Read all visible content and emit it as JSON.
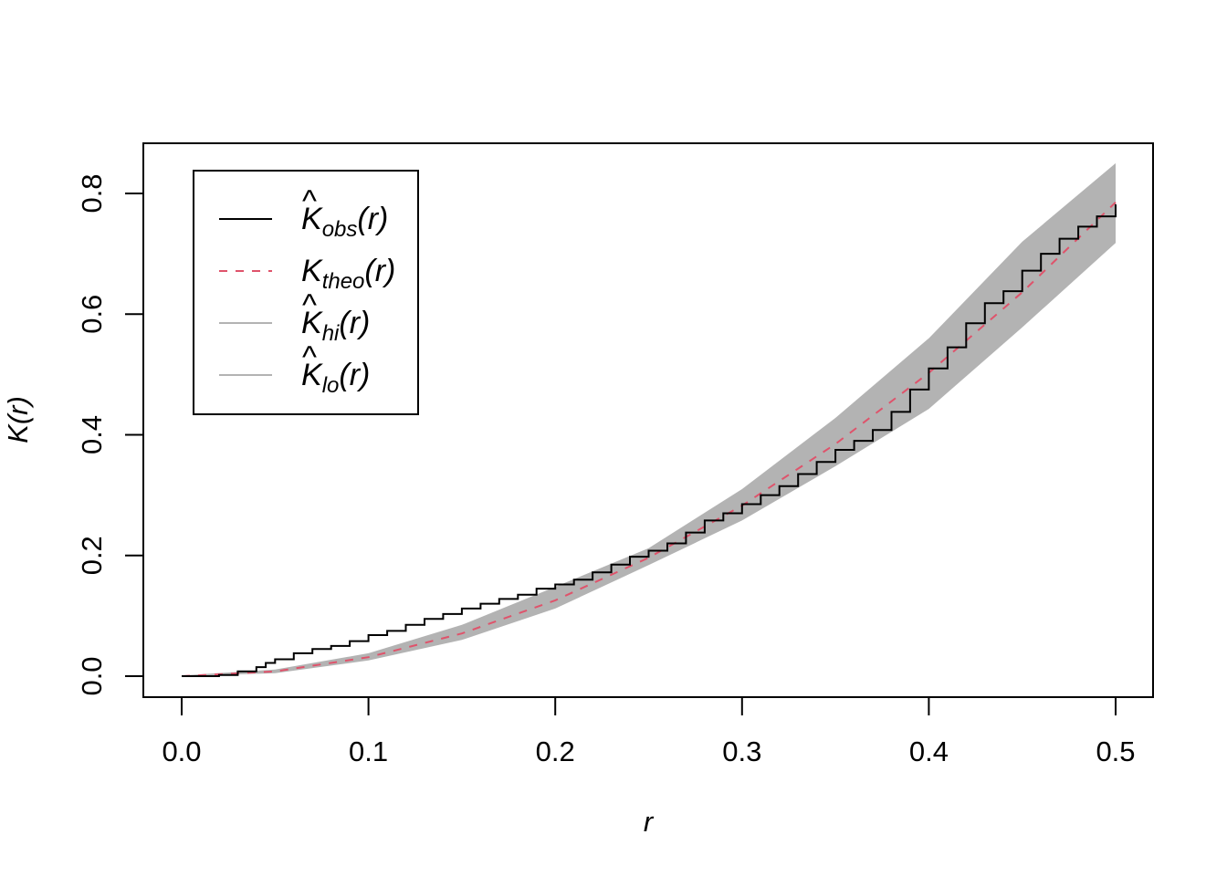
{
  "chart_data": {
    "type": "line",
    "xlabel": "r",
    "ylabel": "K(r)",
    "xlim": [
      0.0,
      0.5
    ],
    "ylim": [
      0.0,
      0.8
    ],
    "x_ticks": [
      "0.0",
      "0.1",
      "0.2",
      "0.3",
      "0.4",
      "0.5"
    ],
    "y_ticks": [
      "0.0",
      "0.2",
      "0.4",
      "0.6",
      "0.8"
    ],
    "grid": false,
    "legend_position": "top-left",
    "colors": {
      "obs": "#000000",
      "theo": "#DF536B",
      "envelope": "#B3B3B3"
    },
    "legend": [
      {
        "base": "K",
        "hat": "^",
        "sub": "obs",
        "arg": "(r)",
        "style": "solid",
        "color": "#000000"
      },
      {
        "base": "K",
        "hat": "",
        "sub": "theo",
        "arg": "(r)",
        "style": "dashed",
        "color": "#DF536B"
      },
      {
        "base": "K",
        "hat": "^",
        "sub": "hi",
        "arg": "(r)",
        "style": "solid",
        "color": "#B3B3B3"
      },
      {
        "base": "K",
        "hat": "^",
        "sub": "lo",
        "arg": "(r)",
        "style": "solid",
        "color": "#B3B3B3"
      }
    ],
    "series": [
      {
        "key": "obs",
        "x": [
          0.0,
          0.02,
          0.03,
          0.04,
          0.045,
          0.05,
          0.06,
          0.07,
          0.08,
          0.09,
          0.1,
          0.11,
          0.12,
          0.13,
          0.14,
          0.15,
          0.16,
          0.17,
          0.18,
          0.19,
          0.2,
          0.21,
          0.22,
          0.23,
          0.24,
          0.25,
          0.26,
          0.27,
          0.28,
          0.29,
          0.3,
          0.31,
          0.32,
          0.33,
          0.34,
          0.35,
          0.36,
          0.37,
          0.38,
          0.39,
          0.4,
          0.41,
          0.42,
          0.43,
          0.44,
          0.45,
          0.46,
          0.47,
          0.48,
          0.49,
          0.5
        ],
        "y": [
          0.0,
          0.002,
          0.008,
          0.015,
          0.022,
          0.028,
          0.038,
          0.045,
          0.05,
          0.058,
          0.068,
          0.075,
          0.085,
          0.095,
          0.103,
          0.112,
          0.12,
          0.128,
          0.135,
          0.145,
          0.152,
          0.16,
          0.172,
          0.185,
          0.198,
          0.208,
          0.22,
          0.238,
          0.258,
          0.27,
          0.285,
          0.3,
          0.315,
          0.335,
          0.355,
          0.375,
          0.39,
          0.408,
          0.438,
          0.475,
          0.51,
          0.545,
          0.585,
          0.618,
          0.638,
          0.672,
          0.7,
          0.725,
          0.745,
          0.762,
          0.782
        ]
      },
      {
        "key": "theo",
        "x": [
          0.0,
          0.05,
          0.1,
          0.15,
          0.2,
          0.25,
          0.3,
          0.35,
          0.4,
          0.45,
          0.5
        ],
        "y": [
          0.0,
          0.00785,
          0.0314,
          0.0707,
          0.1257,
          0.1963,
          0.2827,
          0.3848,
          0.5027,
          0.6362,
          0.7854
        ]
      },
      {
        "key": "hi",
        "x": [
          0.0,
          0.05,
          0.1,
          0.15,
          0.2,
          0.25,
          0.3,
          0.35,
          0.4,
          0.45,
          0.5
        ],
        "y": [
          0.001,
          0.011,
          0.038,
          0.085,
          0.148,
          0.212,
          0.31,
          0.428,
          0.56,
          0.72,
          0.85
        ]
      },
      {
        "key": "lo",
        "x": [
          0.0,
          0.05,
          0.1,
          0.15,
          0.2,
          0.25,
          0.3,
          0.35,
          0.4,
          0.45,
          0.5
        ],
        "y": [
          0.0,
          0.005,
          0.026,
          0.06,
          0.112,
          0.184,
          0.258,
          0.348,
          0.443,
          0.578,
          0.718
        ]
      }
    ]
  }
}
